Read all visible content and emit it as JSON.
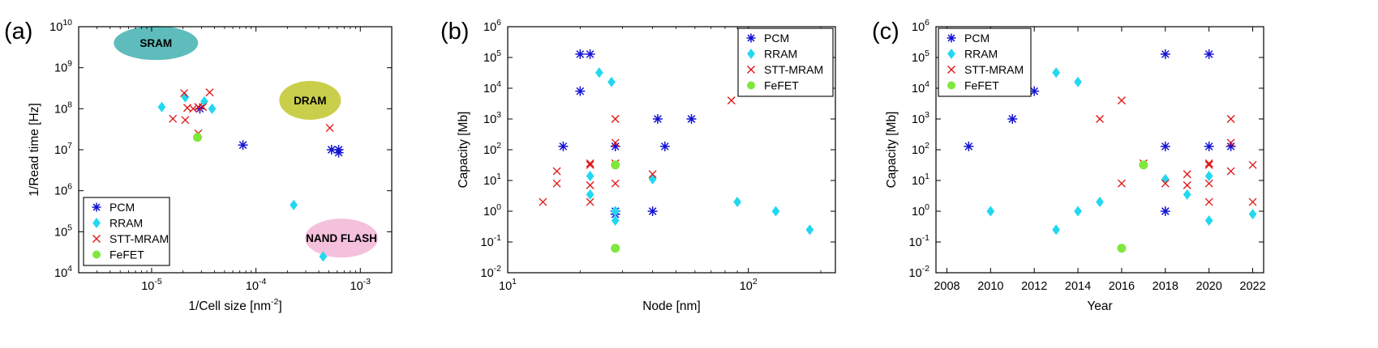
{
  "colors": {
    "PCM": "#1414d2",
    "RRAM": "#22d8f0",
    "STT-MRAM": "#e01010",
    "FeFET": "#7ee83c",
    "axis": "#000000"
  },
  "chart_data": [
    {
      "panel_label": "(a)",
      "type": "scatter",
      "xlabel": "1/Cell size [nm",
      "xlabel_sup": "-2",
      "xlabel_tail": "]",
      "ylabel": "1/Read time [Hz]",
      "x_scale": "log",
      "y_scale": "log",
      "xlim": [
        2e-06,
        0.002
      ],
      "ylim": [
        10000,
        10000000000
      ],
      "x_ticks": [
        {
          "base": "10",
          "exp": "-5",
          "value": 1e-05
        },
        {
          "base": "10",
          "exp": "-4",
          "value": 0.0001
        },
        {
          "base": "10",
          "exp": "-3",
          "value": 0.001
        }
      ],
      "y_ticks": [
        {
          "base": "10",
          "exp": "4",
          "value": 10000.0
        },
        {
          "base": "10",
          "exp": "5",
          "value": 100000.0
        },
        {
          "base": "10",
          "exp": "6",
          "value": 1000000.0
        },
        {
          "base": "10",
          "exp": "7",
          "value": 10000000.0
        },
        {
          "base": "10",
          "exp": "8",
          "value": 100000000.0
        },
        {
          "base": "10",
          "exp": "9",
          "value": 1000000000.0
        },
        {
          "base": "10",
          "exp": "10",
          "value": 10000000000.0
        }
      ],
      "legend_position": "bottom-left",
      "regions": [
        {
          "label": "SRAM",
          "color": "#5fbcbc",
          "x": 1.1e-05,
          "y": 4000000000.0
        },
        {
          "label": "DRAM",
          "color": "#c9cf4a",
          "x": 0.00033,
          "y": 160000000.0
        },
        {
          "label": "NAND FLASH",
          "color": "#f4c0dc",
          "x": 0.00066,
          "y": 70000.0
        }
      ],
      "series": [
        {
          "name": "PCM",
          "marker": "asterisk",
          "points": [
            [
              2.9e-05,
              100000000.0
            ],
            [
              7.5e-05,
              13000000.0
            ],
            [
              0.00053,
              10000000.0
            ],
            [
              0.00062,
              10000000.0
            ],
            [
              0.00062,
              8500000.0
            ]
          ]
        },
        {
          "name": "RRAM",
          "marker": "diamond",
          "points": [
            [
              1.25e-05,
              110000000.0
            ],
            [
              2.1e-05,
              190000000.0
            ],
            [
              3.2e-05,
              150000000.0
            ],
            [
              3.8e-05,
              100000000.0
            ],
            [
              0.00023,
              450000.0
            ],
            [
              0.00044,
              25000.0
            ]
          ]
        },
        {
          "name": "STT-MRAM",
          "marker": "cross",
          "points": [
            [
              1.6e-05,
              57000000.0
            ],
            [
              2.05e-05,
              240000000.0
            ],
            [
              2.1e-05,
              53000000.0
            ],
            [
              2.2e-05,
              105000000.0
            ],
            [
              2.5e-05,
              100000000.0
            ],
            [
              2.8e-05,
              110000000.0
            ],
            [
              3.1e-05,
              110000000.0
            ],
            [
              2.8e-05,
              25000000.0
            ],
            [
              3.6e-05,
              250000000.0
            ],
            [
              0.00051,
              34000000.0
            ]
          ]
        },
        {
          "name": "FeFET",
          "marker": "circle",
          "points": [
            [
              2.75e-05,
              20000000.0
            ]
          ]
        }
      ]
    },
    {
      "panel_label": "(b)",
      "type": "scatter",
      "xlabel": "Node [nm]",
      "ylabel": "Capacity [Mb]",
      "x_scale": "log",
      "y_scale": "log",
      "xlim": [
        10,
        230
      ],
      "ylim": [
        0.01,
        1000000
      ],
      "x_ticks": [
        {
          "base": "10",
          "exp": "1",
          "value": 10
        },
        {
          "base": "10",
          "exp": "2",
          "value": 100
        }
      ],
      "y_ticks": [
        {
          "base": "10",
          "exp": "-2",
          "value": 0.01
        },
        {
          "base": "10",
          "exp": "-1",
          "value": 0.1
        },
        {
          "base": "10",
          "exp": "0",
          "value": 1
        },
        {
          "base": "10",
          "exp": "1",
          "value": 10
        },
        {
          "base": "10",
          "exp": "2",
          "value": 100
        },
        {
          "base": "10",
          "exp": "3",
          "value": 1000
        },
        {
          "base": "10",
          "exp": "4",
          "value": 10000
        },
        {
          "base": "10",
          "exp": "5",
          "value": 100000
        },
        {
          "base": "10",
          "exp": "6",
          "value": 1000000
        }
      ],
      "legend_position": "top-right",
      "series": [
        {
          "name": "PCM",
          "marker": "asterisk",
          "points": [
            [
              17,
              128
            ],
            [
              20,
              8000
            ],
            [
              20,
              128000
            ],
            [
              22,
              128000
            ],
            [
              28,
              128
            ],
            [
              28,
              1
            ],
            [
              28,
              0.8
            ],
            [
              40,
              1
            ],
            [
              42,
              1000
            ],
            [
              45,
              128
            ],
            [
              58,
              1000
            ]
          ]
        },
        {
          "name": "RRAM",
          "marker": "diamond",
          "points": [
            [
              22,
              14
            ],
            [
              22,
              3.5
            ],
            [
              24,
              32000
            ],
            [
              27,
              16000
            ],
            [
              28,
              1
            ],
            [
              28,
              0.5
            ],
            [
              28,
              1
            ],
            [
              40,
              11
            ],
            [
              90,
              2
            ],
            [
              130,
              1
            ],
            [
              180,
              0.25
            ]
          ]
        },
        {
          "name": "STT-MRAM",
          "marker": "cross",
          "points": [
            [
              14,
              2
            ],
            [
              16,
              8
            ],
            [
              16,
              20
            ],
            [
              22,
              36
            ],
            [
              22,
              32
            ],
            [
              22,
              7
            ],
            [
              22,
              2
            ],
            [
              28,
              1000
            ],
            [
              28,
              168
            ],
            [
              28,
              36
            ],
            [
              28,
              8
            ],
            [
              40,
              16
            ],
            [
              85,
              4000
            ]
          ]
        },
        {
          "name": "FeFET",
          "marker": "circle",
          "points": [
            [
              28,
              32
            ],
            [
              28,
              0.0625
            ]
          ]
        }
      ]
    },
    {
      "panel_label": "(c)",
      "type": "scatter",
      "xlabel": "Year",
      "ylabel": "Capacity [Mb]",
      "x_scale": "linear",
      "y_scale": "log",
      "xlim": [
        2007.5,
        2022.5
      ],
      "ylim": [
        0.01,
        1000000
      ],
      "x_ticks": [
        {
          "base": "2008",
          "exp": "",
          "value": 2008
        },
        {
          "base": "2010",
          "exp": "",
          "value": 2010
        },
        {
          "base": "2012",
          "exp": "",
          "value": 2012
        },
        {
          "base": "2014",
          "exp": "",
          "value": 2014
        },
        {
          "base": "2016",
          "exp": "",
          "value": 2016
        },
        {
          "base": "2018",
          "exp": "",
          "value": 2018
        },
        {
          "base": "2020",
          "exp": "",
          "value": 2020
        },
        {
          "base": "2022",
          "exp": "",
          "value": 2022
        }
      ],
      "y_ticks": [
        {
          "base": "10",
          "exp": "-2",
          "value": 0.01
        },
        {
          "base": "10",
          "exp": "-1",
          "value": 0.1
        },
        {
          "base": "10",
          "exp": "0",
          "value": 1
        },
        {
          "base": "10",
          "exp": "1",
          "value": 10
        },
        {
          "base": "10",
          "exp": "2",
          "value": 100
        },
        {
          "base": "10",
          "exp": "3",
          "value": 1000
        },
        {
          "base": "10",
          "exp": "4",
          "value": 10000
        },
        {
          "base": "10",
          "exp": "5",
          "value": 100000
        },
        {
          "base": "10",
          "exp": "6",
          "value": 1000000
        }
      ],
      "legend_position": "top-left",
      "series": [
        {
          "name": "PCM",
          "marker": "asterisk",
          "points": [
            [
              2009,
              128
            ],
            [
              2011,
              1000
            ],
            [
              2012,
              8000
            ],
            [
              2018,
              128000
            ],
            [
              2018,
              128
            ],
            [
              2018,
              1
            ],
            [
              2020,
              128000
            ],
            [
              2020,
              128
            ],
            [
              2021,
              128
            ]
          ]
        },
        {
          "name": "RRAM",
          "marker": "diamond",
          "points": [
            [
              2010,
              1
            ],
            [
              2013,
              32000
            ],
            [
              2013,
              0.25
            ],
            [
              2014,
              16000
            ],
            [
              2014,
              1
            ],
            [
              2015,
              2
            ],
            [
              2018,
              11
            ],
            [
              2019,
              3.5
            ],
            [
              2020,
              14
            ],
            [
              2020,
              0.5
            ],
            [
              2022,
              0.8
            ]
          ]
        },
        {
          "name": "STT-MRAM",
          "marker": "cross",
          "points": [
            [
              2015,
              1000
            ],
            [
              2016,
              4000
            ],
            [
              2016,
              8
            ],
            [
              2017,
              36
            ],
            [
              2018,
              8
            ],
            [
              2019,
              16
            ],
            [
              2019,
              7
            ],
            [
              2020,
              36
            ],
            [
              2020,
              32
            ],
            [
              2020,
              8
            ],
            [
              2020,
              2
            ],
            [
              2021,
              1000
            ],
            [
              2021,
              168
            ],
            [
              2021,
              20
            ],
            [
              2022,
              32
            ],
            [
              2022,
              2
            ]
          ]
        },
        {
          "name": "FeFET",
          "marker": "circle",
          "points": [
            [
              2016,
              0.0625
            ],
            [
              2017,
              32
            ]
          ]
        }
      ]
    }
  ]
}
